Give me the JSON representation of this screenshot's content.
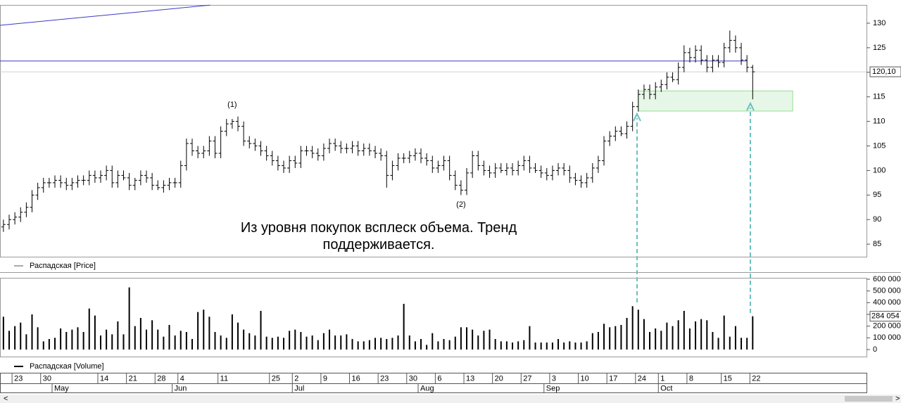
{
  "chart_data": {
    "type": "ohlc",
    "price_legend": "Распадская [Price]",
    "volume_legend": "Распадская [Volume]",
    "annotation": "Из уровня покупок всплеск объема. Тренд поддерживается.",
    "wave_labels": [
      {
        "value": 40,
        "label": "(1)"
      },
      {
        "value": 80,
        "label": "(2)"
      }
    ],
    "xlim": [
      -0.6,
      150.9
    ],
    "xticks": [
      {
        "value": 2,
        "label": "23"
      },
      {
        "value": 7,
        "label": "30"
      },
      {
        "value": 17,
        "label": "14"
      },
      {
        "value": 22,
        "label": "21"
      },
      {
        "value": 27,
        "label": "28"
      },
      {
        "value": 31,
        "label": "4"
      },
      {
        "value": 38,
        "label": "11"
      },
      {
        "value": 47,
        "label": "25"
      },
      {
        "value": 51,
        "label": "2"
      },
      {
        "value": 56,
        "label": "9"
      },
      {
        "value": 61,
        "label": "16"
      },
      {
        "value": 66,
        "label": "23"
      },
      {
        "value": 71,
        "label": "30"
      },
      {
        "value": 76,
        "label": "6"
      },
      {
        "value": 81,
        "label": "13"
      },
      {
        "value": 86,
        "label": "20"
      },
      {
        "value": 91,
        "label": "27"
      },
      {
        "value": 96,
        "label": "3"
      },
      {
        "value": 101,
        "label": "10"
      },
      {
        "value": 106,
        "label": "17"
      },
      {
        "value": 111,
        "label": "24"
      },
      {
        "value": 115,
        "label": "1"
      },
      {
        "value": 120,
        "label": "8"
      },
      {
        "value": 126,
        "label": "15"
      },
      {
        "value": 131,
        "label": "22"
      }
    ],
    "month_ticks": [
      {
        "value": 9,
        "label": "May"
      },
      {
        "value": 30,
        "label": "Jun"
      },
      {
        "value": 51,
        "label": "Jul"
      },
      {
        "value": 73,
        "label": "Aug"
      },
      {
        "value": 95,
        "label": "Sep"
      },
      {
        "value": 115,
        "label": "Oct"
      }
    ],
    "ylim": [
      82.44,
      133.72
    ],
    "yticks": [
      85,
      90,
      95,
      100,
      105,
      110,
      115,
      120,
      125,
      130
    ],
    "last_price_label": "120,10",
    "level": 122.3,
    "zone": [
      112.1,
      116.2
    ],
    "zone_x": [
      111,
      138
    ],
    "color": "#000000",
    "level_color": "#3a3ac8",
    "zone_color": "#5cc85c",
    "open": [
      88.5,
      89,
      90,
      90.5,
      91.5,
      92.5,
      95,
      96.5,
      97.5,
      97.5,
      98,
      97.5,
      97,
      97.5,
      98,
      98,
      99,
      98.5,
      99,
      100,
      97.5,
      99,
      98.5,
      97,
      98,
      99,
      98.5,
      97,
      96.5,
      97,
      97.5,
      97.5,
      101,
      105.5,
      104,
      103.5,
      104,
      106,
      103.5,
      108,
      109.5,
      110,
      109,
      106,
      105.5,
      105,
      104,
      103,
      102,
      101,
      100.5,
      102,
      101.5,
      104,
      104,
      103.5,
      103,
      104.5,
      105.5,
      105,
      104.5,
      104.5,
      105,
      104,
      104.5,
      104,
      103.5,
      103,
      99,
      101,
      102.5,
      102.5,
      103,
      103.5,
      102.5,
      102,
      100.5,
      101,
      102,
      99,
      97,
      96,
      99.5,
      103,
      101,
      100,
      99.5,
      100.5,
      100,
      100.5,
      100,
      101,
      102,
      100.5,
      100,
      99.5,
      99,
      100,
      100.5,
      100,
      98.5,
      98,
      97.5,
      98.5,
      100.5,
      102,
      106,
      107,
      108,
      107.5,
      109,
      113,
      115.5,
      116.5,
      115.5,
      117,
      117.5,
      119,
      118.5,
      121,
      124,
      123,
      124.5,
      122.5,
      121,
      122.5,
      122,
      125,
      126.5,
      125,
      122.5,
      121
    ],
    "high": [
      90,
      91,
      91.5,
      92.5,
      93.5,
      96,
      97.5,
      98.5,
      98.5,
      99,
      99,
      98.5,
      98.5,
      99,
      99,
      100,
      100,
      100,
      101,
      101,
      100,
      100,
      99.5,
      98.5,
      100,
      100,
      99.5,
      98,
      98,
      98.5,
      98.5,
      102,
      106.5,
      106.5,
      105,
      105,
      107,
      107,
      109,
      110.5,
      110.5,
      111,
      110,
      107,
      106.5,
      106,
      105,
      104,
      103,
      102,
      103,
      103,
      105,
      105,
      105,
      104.5,
      105.5,
      106.5,
      106.5,
      106,
      105.5,
      106,
      106,
      105.5,
      105.5,
      105,
      104.5,
      104,
      102,
      103.5,
      103.5,
      104,
      104.5,
      104.5,
      103.5,
      103,
      102,
      103,
      103,
      100,
      98,
      100.5,
      104,
      104,
      102,
      101,
      101.5,
      101.5,
      101.5,
      101.5,
      102,
      103,
      103,
      101.5,
      101,
      100.5,
      101,
      101.5,
      101.5,
      101,
      99.5,
      99,
      99.5,
      101.5,
      103,
      107,
      108,
      109,
      109,
      110,
      114,
      116.5,
      117.5,
      117.5,
      118,
      118.5,
      120,
      120,
      122,
      125.5,
      125,
      125.5,
      125.5,
      123.5,
      123.5,
      123.5,
      126,
      128.5,
      127.5,
      126,
      123.5,
      121.5
    ],
    "low": [
      87.5,
      88,
      89,
      89.5,
      90.5,
      91.5,
      94,
      95.5,
      96.5,
      96.5,
      96.5,
      96,
      96,
      96.5,
      97,
      97,
      97.5,
      97.5,
      98,
      96.5,
      96.5,
      98,
      96,
      96,
      97,
      97.5,
      96,
      96,
      95.5,
      96,
      96.5,
      96.5,
      100,
      103,
      102.5,
      102.5,
      103,
      102.5,
      102.5,
      107,
      108.5,
      108,
      105,
      104.5,
      104,
      103,
      102,
      101,
      100,
      99.5,
      99.5,
      100.5,
      100.5,
      103,
      102.5,
      102,
      102,
      103.5,
      104,
      103.5,
      103.5,
      103.5,
      103,
      103,
      103,
      102.5,
      102,
      96.5,
      98,
      100,
      101.5,
      101.5,
      102,
      101.5,
      101,
      99.5,
      99.5,
      100,
      98,
      96,
      95,
      95,
      98.5,
      100,
      99,
      98.5,
      98.5,
      99.5,
      99,
      99,
      99,
      100,
      99.5,
      99.5,
      98.5,
      98,
      98,
      99,
      99,
      97.5,
      97,
      96.5,
      96.5,
      97.5,
      99.5,
      101,
      105,
      106,
      107,
      106.5,
      108,
      112,
      114.5,
      114.5,
      114.5,
      116,
      116.5,
      118,
      117.5,
      120,
      122,
      122,
      121.5,
      120,
      120,
      121,
      121,
      124,
      124,
      121.5,
      120,
      114.5
    ],
    "close": [
      89,
      90,
      90.5,
      91.5,
      92.5,
      95,
      96.5,
      97.5,
      97.5,
      98,
      97.5,
      97,
      97.5,
      98,
      98,
      99,
      98.5,
      99,
      100,
      97.5,
      99,
      98.5,
      97,
      98,
      99,
      98.5,
      97,
      96.5,
      97,
      97.5,
      97.5,
      101,
      105.5,
      104,
      103.5,
      104,
      106,
      103.5,
      108,
      109.5,
      110,
      109,
      106,
      105.5,
      105,
      104,
      103,
      102,
      101,
      100.5,
      102,
      101.5,
      104,
      104,
      103.5,
      103,
      104.5,
      105.5,
      105,
      104.5,
      104.5,
      105,
      104,
      104.5,
      104,
      103.5,
      103,
      99,
      101,
      102.5,
      102.5,
      103,
      103.5,
      102.5,
      102,
      100.5,
      101,
      102,
      99,
      97,
      96,
      99.5,
      103,
      101,
      100,
      99.5,
      100.5,
      100,
      100.5,
      100,
      101,
      102,
      100.5,
      100,
      99.5,
      99,
      100,
      100.5,
      100,
      98.5,
      98,
      97.5,
      98.5,
      100.5,
      102,
      106,
      107,
      108,
      107.5,
      109,
      113,
      115.5,
      116.5,
      115.5,
      117,
      117.5,
      119,
      118.5,
      121,
      124,
      123,
      124.5,
      122.5,
      121,
      122.5,
      122,
      125,
      126.5,
      125,
      122.5,
      121,
      120.1
    ],
    "volume": [
      280000,
      160000,
      200000,
      230000,
      130000,
      300000,
      190000,
      70000,
      90000,
      100000,
      180000,
      150000,
      170000,
      190000,
      150000,
      350000,
      290000,
      120000,
      170000,
      130000,
      240000,
      130000,
      530000,
      200000,
      270000,
      170000,
      250000,
      170000,
      110000,
      210000,
      120000,
      160000,
      150000,
      90000,
      320000,
      340000,
      280000,
      150000,
      120000,
      100000,
      300000,
      230000,
      170000,
      140000,
      120000,
      330000,
      110000,
      100000,
      110000,
      100000,
      160000,
      170000,
      150000,
      110000,
      120000,
      80000,
      140000,
      170000,
      120000,
      120000,
      130000,
      90000,
      70000,
      70000,
      80000,
      100000,
      100000,
      90000,
      100000,
      120000,
      390000,
      120000,
      70000,
      90000,
      40000,
      140000,
      70000,
      90000,
      80000,
      110000,
      190000,
      190000,
      170000,
      120000,
      160000,
      170000,
      90000,
      70000,
      70000,
      60000,
      70000,
      80000,
      200000,
      60000,
      60000,
      60000,
      60000,
      90000,
      60000,
      70000,
      60000,
      60000,
      70000,
      140000,
      150000,
      220000,
      190000,
      200000,
      210000,
      270000,
      370000,
      340000,
      260000,
      150000,
      180000,
      160000,
      230000,
      200000,
      250000,
      330000,
      180000,
      240000,
      260000,
      250000,
      150000,
      100000,
      290000,
      110000,
      200000,
      100000,
      100000,
      284054
    ],
    "last_volume_label": "284 054",
    "vlim": [
      -60000,
      612000
    ],
    "vticks": [
      {
        "value": 0,
        "label": "0"
      },
      {
        "value": 100000,
        "label": "100 000"
      },
      {
        "value": 200000,
        "label": "200 000"
      },
      {
        "value": 300000,
        "label": "300 000"
      },
      {
        "value": 400000,
        "label": "400 000"
      },
      {
        "value": 500000,
        "label": "500 000"
      },
      {
        "value": 600000,
        "label": "600 000"
      }
    ]
  }
}
